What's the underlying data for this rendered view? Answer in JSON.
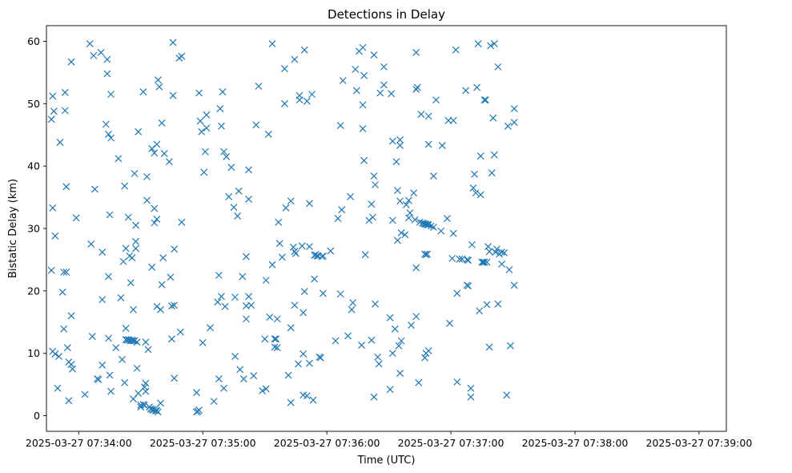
{
  "chart_data": {
    "type": "scatter",
    "title": "Detections in Delay",
    "xlabel": "Time (UTC)",
    "ylabel": "Bistatic Delay (km)",
    "marker": "x",
    "color": "#1f77b4",
    "x_unit": "minutes since 2025-03-27 07:33:00",
    "xlim": [
      0.74,
      6.22
    ],
    "ylim": [
      -2.5,
      62.5
    ],
    "x_ticks": [
      {
        "value": 1,
        "label": "2025-03-27 07:34:00"
      },
      {
        "value": 2,
        "label": "2025-03-27 07:35:00"
      },
      {
        "value": 3,
        "label": "2025-03-27 07:36:00"
      },
      {
        "value": 4,
        "label": "2025-03-27 07:37:00"
      },
      {
        "value": 5,
        "label": "2025-03-27 07:38:00"
      },
      {
        "value": 6,
        "label": "2025-03-27 07:39:00"
      }
    ],
    "y_ticks": [
      {
        "value": 0,
        "label": "0"
      },
      {
        "value": 10,
        "label": "10"
      },
      {
        "value": 20,
        "label": "20"
      },
      {
        "value": 30,
        "label": "30"
      },
      {
        "value": 40,
        "label": "40"
      },
      {
        "value": 50,
        "label": "50"
      },
      {
        "value": 60,
        "label": "60"
      }
    ],
    "points": [
      [
        0.78,
        47.5
      ],
      [
        0.79,
        51.2
      ],
      [
        0.8,
        48.8
      ],
      [
        0.79,
        33.3
      ],
      [
        0.81,
        28.8
      ],
      [
        0.78,
        23.3
      ],
      [
        0.79,
        10.3
      ],
      [
        0.81,
        9.9
      ],
      [
        0.84,
        9.5
      ],
      [
        0.83,
        4.4
      ],
      [
        0.85,
        43.8
      ],
      [
        0.87,
        19.8
      ],
      [
        0.88,
        13.9
      ],
      [
        0.9,
        23.0
      ],
      [
        0.88,
        23.0
      ],
      [
        0.89,
        48.9
      ],
      [
        0.89,
        51.8
      ],
      [
        0.9,
        36.7
      ],
      [
        0.91,
        10.9
      ],
      [
        0.92,
        8.6
      ],
      [
        0.94,
        8.2
      ],
      [
        0.95,
        7.5
      ],
      [
        0.92,
        2.4
      ],
      [
        0.94,
        16.0
      ],
      [
        0.94,
        56.7
      ],
      [
        0.98,
        31.7
      ],
      [
        1.05,
        3.4
      ],
      [
        1.09,
        59.6
      ],
      [
        1.1,
        27.5
      ],
      [
        1.11,
        12.7
      ],
      [
        1.12,
        57.7
      ],
      [
        1.13,
        36.3
      ],
      [
        1.15,
        5.9
      ],
      [
        1.16,
        5.8
      ],
      [
        1.18,
        58.2
      ],
      [
        1.19,
        26.2
      ],
      [
        1.19,
        8.1
      ],
      [
        1.19,
        18.6
      ],
      [
        1.22,
        46.7
      ],
      [
        1.23,
        57.1
      ],
      [
        1.23,
        54.8
      ],
      [
        1.24,
        45.1
      ],
      [
        1.24,
        12.4
      ],
      [
        1.24,
        22.3
      ],
      [
        1.25,
        6.5
      ],
      [
        1.26,
        51.5
      ],
      [
        1.25,
        32.2
      ],
      [
        1.26,
        44.5
      ],
      [
        1.26,
        3.9
      ],
      [
        1.3,
        10.9
      ],
      [
        1.32,
        41.2
      ],
      [
        1.34,
        18.9
      ],
      [
        1.35,
        9.0
      ],
      [
        1.36,
        24.7
      ],
      [
        1.37,
        36.8
      ],
      [
        1.38,
        26.8
      ],
      [
        1.38,
        14.0
      ],
      [
        1.37,
        5.3
      ],
      [
        1.4,
        31.8
      ],
      [
        1.41,
        25.6
      ],
      [
        1.42,
        21.3
      ],
      [
        1.43,
        25.3
      ],
      [
        1.44,
        2.7
      ],
      [
        1.44,
        17.0
      ],
      [
        1.45,
        38.8
      ],
      [
        1.46,
        30.5
      ],
      [
        1.46,
        27.9
      ],
      [
        1.46,
        26.8
      ],
      [
        1.47,
        11.8
      ],
      [
        1.47,
        7.6
      ],
      [
        1.48,
        45.5
      ],
      [
        1.48,
        3.6
      ],
      [
        1.5,
        1.7
      ],
      [
        1.5,
        1.4
      ],
      [
        1.52,
        51.9
      ],
      [
        1.53,
        4.6
      ],
      [
        1.54,
        11.8
      ],
      [
        1.54,
        5.2
      ],
      [
        1.54,
        3.9
      ],
      [
        1.55,
        34.5
      ],
      [
        1.55,
        38.3
      ],
      [
        1.56,
        10.6
      ],
      [
        1.59,
        23.8
      ],
      [
        1.59,
        42.8
      ],
      [
        1.61,
        42.1
      ],
      [
        1.61,
        33.2
      ],
      [
        1.61,
        30.9
      ],
      [
        1.63,
        43.5
      ],
      [
        1.63,
        31.5
      ],
      [
        1.63,
        17.5
      ],
      [
        1.64,
        53.8
      ],
      [
        1.65,
        52.7
      ],
      [
        1.66,
        17.0
      ],
      [
        1.66,
        2.0
      ],
      [
        1.67,
        21.0
      ],
      [
        1.67,
        46.9
      ],
      [
        1.68,
        25.3
      ],
      [
        1.69,
        42.0
      ],
      [
        1.73,
        40.7
      ],
      [
        1.74,
        22.2
      ],
      [
        1.75,
        12.3
      ],
      [
        1.75,
        17.6
      ],
      [
        1.76,
        59.8
      ],
      [
        1.76,
        51.3
      ],
      [
        1.77,
        26.7
      ],
      [
        1.77,
        6.0
      ],
      [
        1.77,
        17.7
      ],
      [
        1.81,
        57.3
      ],
      [
        1.83,
        57.6
      ],
      [
        1.83,
        31.0
      ],
      [
        1.82,
        13.4
      ],
      [
        1.38,
        12.2
      ],
      [
        1.39,
        12.1
      ],
      [
        1.4,
        12.2
      ],
      [
        1.41,
        12.1
      ],
      [
        1.42,
        12.0
      ],
      [
        1.43,
        12.1
      ],
      [
        1.44,
        12.0
      ],
      [
        1.45,
        12.0
      ],
      [
        1.52,
        1.8
      ],
      [
        1.53,
        1.7
      ],
      [
        1.57,
        1.4
      ],
      [
        1.58,
        1.1
      ],
      [
        1.59,
        1.0
      ],
      [
        1.6,
        0.9
      ],
      [
        1.61,
        1.0
      ],
      [
        1.62,
        0.8
      ],
      [
        1.63,
        0.8
      ],
      [
        1.64,
        0.6
      ],
      [
        1.97,
        51.7
      ],
      [
        1.98,
        47.2
      ],
      [
        1.99,
        45.5
      ],
      [
        2.0,
        11.7
      ],
      [
        2.01,
        39.0
      ],
      [
        2.02,
        42.3
      ],
      [
        2.03,
        46.1
      ],
      [
        2.03,
        48.2
      ],
      [
        1.95,
        3.7
      ],
      [
        1.95,
        0.6
      ],
      [
        1.96,
        0.7
      ],
      [
        1.97,
        0.9
      ],
      [
        2.06,
        14.1
      ],
      [
        2.09,
        2.3
      ],
      [
        2.12,
        18.2
      ],
      [
        2.13,
        22.5
      ],
      [
        2.13,
        5.9
      ],
      [
        2.14,
        49.2
      ],
      [
        2.15,
        46.4
      ],
      [
        2.15,
        19.1
      ],
      [
        2.16,
        51.9
      ],
      [
        2.17,
        42.3
      ],
      [
        2.17,
        4.4
      ],
      [
        2.18,
        17.5
      ],
      [
        2.19,
        41.5
      ],
      [
        2.21,
        35.1
      ],
      [
        2.23,
        39.8
      ],
      [
        2.25,
        33.4
      ],
      [
        2.26,
        19.0
      ],
      [
        2.26,
        9.5
      ],
      [
        2.28,
        32.0
      ],
      [
        2.29,
        36.0
      ],
      [
        2.3,
        7.4
      ],
      [
        2.32,
        22.3
      ],
      [
        2.33,
        5.9
      ],
      [
        2.35,
        25.5
      ],
      [
        2.35,
        17.6
      ],
      [
        2.35,
        15.5
      ],
      [
        2.37,
        39.4
      ],
      [
        2.37,
        34.7
      ],
      [
        2.37,
        19.1
      ],
      [
        2.39,
        17.7
      ],
      [
        2.41,
        6.4
      ],
      [
        2.43,
        46.6
      ],
      [
        2.45,
        52.8
      ],
      [
        2.48,
        4.0
      ],
      [
        2.5,
        12.3
      ],
      [
        2.51,
        21.7
      ],
      [
        2.51,
        4.3
      ],
      [
        2.53,
        45.1
      ],
      [
        2.54,
        15.8
      ],
      [
        2.56,
        24.2
      ],
      [
        2.56,
        59.6
      ],
      [
        2.58,
        11.0
      ],
      [
        2.58,
        12.3
      ],
      [
        2.59,
        12.3
      ],
      [
        2.6,
        10.9
      ],
      [
        2.6,
        15.5
      ],
      [
        2.61,
        31.0
      ],
      [
        2.62,
        27.6
      ],
      [
        2.64,
        25.4
      ],
      [
        2.66,
        50.0
      ],
      [
        2.66,
        55.6
      ],
      [
        2.67,
        33.3
      ],
      [
        2.69,
        6.5
      ],
      [
        2.71,
        34.4
      ],
      [
        2.71,
        14.1
      ],
      [
        2.71,
        2.1
      ],
      [
        2.73,
        27.0
      ],
      [
        2.74,
        57.1
      ],
      [
        2.74,
        17.7
      ],
      [
        2.74,
        26.3
      ],
      [
        2.75,
        26.0
      ],
      [
        2.77,
        8.3
      ],
      [
        2.78,
        51.3
      ],
      [
        2.78,
        50.6
      ],
      [
        2.8,
        27.2
      ],
      [
        2.81,
        3.3
      ],
      [
        2.81,
        16.5
      ],
      [
        2.82,
        19.9
      ],
      [
        2.81,
        9.9
      ],
      [
        2.82,
        58.6
      ],
      [
        2.84,
        50.4
      ],
      [
        2.84,
        3.2
      ],
      [
        2.86,
        34.0
      ],
      [
        2.86,
        27.1
      ],
      [
        2.86,
        8.4
      ],
      [
        2.88,
        51.5
      ],
      [
        2.89,
        2.5
      ],
      [
        2.9,
        25.7
      ],
      [
        2.9,
        21.9
      ],
      [
        2.91,
        25.8
      ],
      [
        2.92,
        25.6
      ],
      [
        2.93,
        25.6
      ],
      [
        2.94,
        9.4
      ],
      [
        2.95,
        9.3
      ],
      [
        2.96,
        25.5
      ],
      [
        2.97,
        25.6
      ],
      [
        2.97,
        19.6
      ],
      [
        3.03,
        26.4
      ],
      [
        3.07,
        12.0
      ],
      [
        3.09,
        31.6
      ],
      [
        3.11,
        46.5
      ],
      [
        3.12,
        33.0
      ],
      [
        3.11,
        19.5
      ],
      [
        3.13,
        53.7
      ],
      [
        3.17,
        12.8
      ],
      [
        3.19,
        35.1
      ],
      [
        3.2,
        17.0
      ],
      [
        3.21,
        18.1
      ],
      [
        3.23,
        55.5
      ],
      [
        3.24,
        52.1
      ],
      [
        3.26,
        58.4
      ],
      [
        3.28,
        11.3
      ],
      [
        3.29,
        59.0
      ],
      [
        3.3,
        54.5
      ],
      [
        3.29,
        49.8
      ],
      [
        3.29,
        46.0
      ],
      [
        3.31,
        25.8
      ],
      [
        3.3,
        40.9
      ],
      [
        3.34,
        31.3
      ],
      [
        3.36,
        33.9
      ],
      [
        3.37,
        31.8
      ],
      [
        3.36,
        12.1
      ],
      [
        3.38,
        38.4
      ],
      [
        3.38,
        3.0
      ],
      [
        3.39,
        37.0
      ],
      [
        3.38,
        57.8
      ],
      [
        3.39,
        17.9
      ],
      [
        3.41,
        9.4
      ],
      [
        3.42,
        8.3
      ],
      [
        3.43,
        51.7
      ],
      [
        3.46,
        53.0
      ],
      [
        3.46,
        55.9
      ],
      [
        3.51,
        4.2
      ],
      [
        3.51,
        15.7
      ],
      [
        3.52,
        51.6
      ],
      [
        3.53,
        44.0
      ],
      [
        3.53,
        31.3
      ],
      [
        3.53,
        10.0
      ],
      [
        3.55,
        13.9
      ],
      [
        3.56,
        40.7
      ],
      [
        3.57,
        36.1
      ],
      [
        3.57,
        28.1
      ],
      [
        3.58,
        11.2
      ],
      [
        3.59,
        34.4
      ],
      [
        3.59,
        43.3
      ],
      [
        3.59,
        44.2
      ],
      [
        3.59,
        6.8
      ],
      [
        3.6,
        29.3
      ],
      [
        3.6,
        12.0
      ],
      [
        3.63,
        29.0
      ],
      [
        3.64,
        33.8
      ],
      [
        3.66,
        31.7
      ],
      [
        3.66,
        34.5
      ],
      [
        3.67,
        32.5
      ],
      [
        3.68,
        14.5
      ],
      [
        3.7,
        35.7
      ],
      [
        3.71,
        31.4
      ],
      [
        3.72,
        58.2
      ],
      [
        3.72,
        15.9
      ],
      [
        3.72,
        23.7
      ],
      [
        3.72,
        52.3
      ],
      [
        3.73,
        52.6
      ],
      [
        3.74,
        5.3
      ],
      [
        3.75,
        31.0
      ],
      [
        3.76,
        48.3
      ],
      [
        3.79,
        9.3
      ],
      [
        3.8,
        10.0
      ],
      [
        3.82,
        10.4
      ],
      [
        3.82,
        48.0
      ],
      [
        3.82,
        43.5
      ],
      [
        3.86,
        38.4
      ],
      [
        3.88,
        50.6
      ],
      [
        3.92,
        29.6
      ],
      [
        3.93,
        43.3
      ],
      [
        3.97,
        31.6
      ],
      [
        3.98,
        47.3
      ],
      [
        3.99,
        14.8
      ],
      [
        4.01,
        25.2
      ],
      [
        4.02,
        29.2
      ],
      [
        4.02,
        47.3
      ],
      [
        4.04,
        58.6
      ],
      [
        4.05,
        19.6
      ],
      [
        4.05,
        5.4
      ],
      [
        4.07,
        25.1
      ],
      [
        4.09,
        25.1
      ],
      [
        4.12,
        52.1
      ],
      [
        4.13,
        20.9
      ],
      [
        4.14,
        20.8
      ],
      [
        4.13,
        25.0
      ],
      [
        4.14,
        24.9
      ],
      [
        4.16,
        4.4
      ],
      [
        4.16,
        3.0
      ],
      [
        4.17,
        27.4
      ],
      [
        4.18,
        36.5
      ],
      [
        4.19,
        38.7
      ],
      [
        4.2,
        35.7
      ],
      [
        4.21,
        52.6
      ],
      [
        4.22,
        59.6
      ],
      [
        4.23,
        16.8
      ],
      [
        4.24,
        41.6
      ],
      [
        4.24,
        35.4
      ],
      [
        4.25,
        24.6
      ],
      [
        4.26,
        24.6
      ],
      [
        4.27,
        24.6
      ],
      [
        4.27,
        50.6
      ],
      [
        4.28,
        50.6
      ],
      [
        4.29,
        24.6
      ],
      [
        4.29,
        17.8
      ],
      [
        4.3,
        27.1
      ],
      [
        4.31,
        26.3
      ],
      [
        4.31,
        11.0
      ],
      [
        4.32,
        59.3
      ],
      [
        4.33,
        38.9
      ],
      [
        4.34,
        47.7
      ],
      [
        4.35,
        41.8
      ],
      [
        4.35,
        59.6
      ],
      [
        4.36,
        26.2
      ],
      [
        4.37,
        26.7
      ],
      [
        4.38,
        55.9
      ],
      [
        4.38,
        17.9
      ],
      [
        4.39,
        25.9
      ],
      [
        4.41,
        24.3
      ],
      [
        4.41,
        26.2
      ],
      [
        4.43,
        26.1
      ],
      [
        4.45,
        3.3
      ],
      [
        4.46,
        46.4
      ],
      [
        4.47,
        23.4
      ],
      [
        4.48,
        11.2
      ],
      [
        4.51,
        49.2
      ],
      [
        4.51,
        47.0
      ],
      [
        4.51,
        20.9
      ],
      [
        3.77,
        30.9
      ],
      [
        3.78,
        30.8
      ],
      [
        3.79,
        30.7
      ],
      [
        3.8,
        30.7
      ],
      [
        3.81,
        30.6
      ],
      [
        3.82,
        30.6
      ],
      [
        3.84,
        30.4
      ],
      [
        3.86,
        30.2
      ],
      [
        3.79,
        25.9
      ],
      [
        3.8,
        25.8
      ],
      [
        3.81,
        25.9
      ]
    ]
  }
}
